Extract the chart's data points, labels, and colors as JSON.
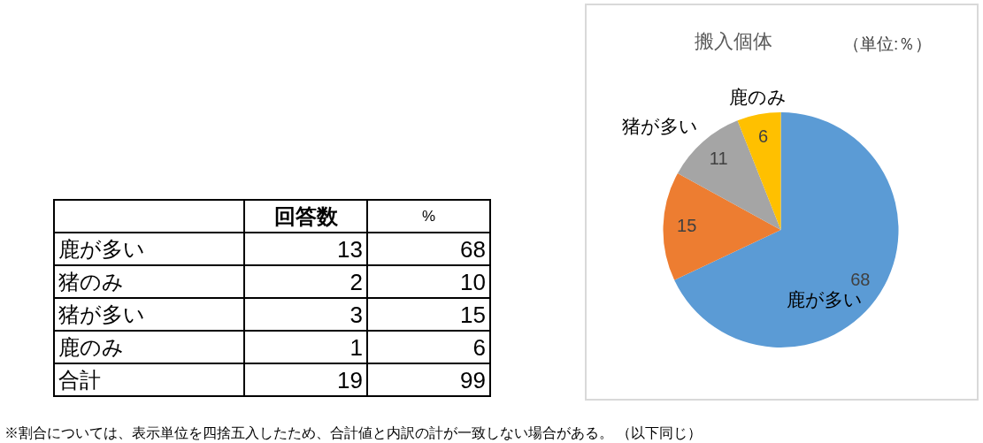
{
  "chart_data": [
    {
      "type": "other",
      "categories": [
        "鹿が多い",
        "猪のみ",
        "猪が多い",
        "鹿のみ",
        "合計"
      ],
      "series": [
        {
          "name": "回答数",
          "values": [
            13,
            2,
            3,
            1,
            19
          ]
        },
        {
          "name": "%",
          "values": [
            68,
            10,
            15,
            6,
            99
          ]
        }
      ],
      "data_labels": true,
      "annotations": [
        "※割合については、表示単位を四捨五入したため、合計値と内訳の計が一致しない場合がある。 （以下同じ）"
      ]
    },
    {
      "type": "pie",
      "title": "搬入個体",
      "subtitle": "（単位:％）",
      "categories": [
        "鹿が多い",
        null,
        "猪が多い",
        "鹿のみ"
      ],
      "values": [
        68,
        15,
        11,
        6
      ],
      "colors": [
        "#5b9bd5",
        "#ed7d31",
        "#a5a5a5",
        "#ffc000"
      ],
      "data_labels": true
    }
  ]
}
